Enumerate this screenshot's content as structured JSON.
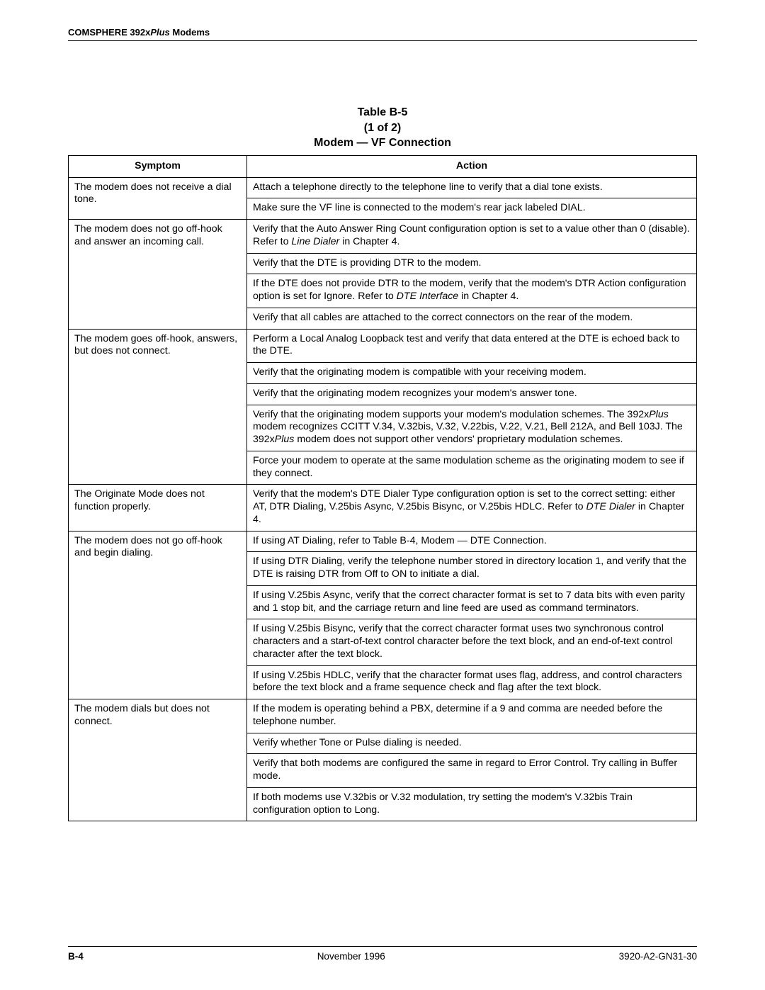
{
  "header": {
    "prefix": "COMSPHERE 392x",
    "italic": "Plus",
    "suffix": " Modems"
  },
  "caption": {
    "line1": "Table B-5",
    "line2": "(1 of 2)",
    "line3": "Modem — VF Connection"
  },
  "columns": {
    "symptom": "Symptom",
    "action": "Action"
  },
  "rows": [
    {
      "symptom": "The modem does not receive a dial tone.",
      "actions": [
        [
          {
            "t": "Attach a telephone directly to the telephone line to verify that a dial tone exists."
          }
        ],
        [
          {
            "t": "Make sure the VF line is connected to the modem's rear jack labeled DIAL."
          }
        ]
      ]
    },
    {
      "symptom": "The modem does not go off-hook and answer an incoming call.",
      "actions": [
        [
          {
            "t": "Verify that the Auto Answer Ring Count configuration option is set to a value other than 0 (disable). Refer to "
          },
          {
            "t": "Line Dialer",
            "i": true
          },
          {
            "t": " in Chapter 4."
          }
        ],
        [
          {
            "t": "Verify that the DTE is providing DTR to the modem."
          }
        ],
        [
          {
            "t": "If the DTE does not provide DTR to the modem, verify that the modem's DTR Action configuration option is set for Ignore. Refer to "
          },
          {
            "t": "DTE Interface",
            "i": true
          },
          {
            "t": " in Chapter 4."
          }
        ],
        [
          {
            "t": "Verify that all cables are attached to the correct connectors on the rear of the modem."
          }
        ]
      ]
    },
    {
      "symptom": "The modem goes off-hook, answers, but does not connect.",
      "actions": [
        [
          {
            "t": "Perform a Local Analog Loopback test and verify that data entered at the DTE is echoed back to the DTE."
          }
        ],
        [
          {
            "t": "Verify that the originating modem is compatible with your receiving modem."
          }
        ],
        [
          {
            "t": "Verify that the originating modem recognizes your modem's answer tone."
          }
        ],
        [
          {
            "t": "Verify that the originating modem supports your modem's modulation schemes. The 392x"
          },
          {
            "t": "Plus",
            "i": true
          },
          {
            "t": " modem recognizes CCITT V.34, V.32bis, V.32, V.22bis, V.22, V.21, Bell 212A, and Bell 103J. The 392x"
          },
          {
            "t": "Plus",
            "i": true
          },
          {
            "t": " modem does not support other vendors' proprietary modulation schemes."
          }
        ],
        [
          {
            "t": "Force your modem to operate at the same modulation scheme as the originating modem to see if they connect."
          }
        ]
      ]
    },
    {
      "symptom": "The Originate Mode does not function properly.",
      "actions": [
        [
          {
            "t": "Verify that the modem's DTE Dialer Type configuration option is set to the correct setting: either AT, DTR Dialing, V.25bis Async, V.25bis Bisync, or V.25bis HDLC. Refer to "
          },
          {
            "t": "DTE Dialer",
            "i": true
          },
          {
            "t": " in Chapter 4."
          }
        ]
      ]
    },
    {
      "symptom": "The modem does not go off-hook and begin dialing.",
      "actions": [
        [
          {
            "t": "If using AT Dialing, refer to Table B-4, Modem — DTE Connection."
          }
        ],
        [
          {
            "t": "If using DTR Dialing, verify the telephone number stored in directory location 1, and verify that the DTE is raising DTR from Off to ON to initiate a dial."
          }
        ],
        [
          {
            "t": "If using V.25bis Async, verify that the correct character format is set to 7 data bits with even parity and 1 stop bit, and the carriage return and line feed are used as command terminators."
          }
        ],
        [
          {
            "t": "If using V.25bis Bisync, verify that the correct character format uses two synchronous control characters and a start-of-text control character before the text block, and an end-of-text control character after the text block."
          }
        ],
        [
          {
            "t": "If using V.25bis HDLC, verify that the character format uses flag, address, and control characters before the text block and a frame sequence check and flag after the text block."
          }
        ]
      ]
    },
    {
      "symptom": "The modem dials but does not connect.",
      "actions": [
        [
          {
            "t": "If the modem is operating behind a PBX, determine if a 9 and comma are needed before the telephone number."
          }
        ],
        [
          {
            "t": "Verify whether Tone or Pulse dialing is needed."
          }
        ],
        [
          {
            "t": "Verify that both modems are configured the same in regard to Error Control. Try calling in Buffer mode."
          }
        ],
        [
          {
            "t": "If both modems use V.32bis or V.32 modulation, try setting the modem's V.32bis Train configuration option to Long."
          }
        ]
      ]
    }
  ],
  "footer": {
    "page": "B-4",
    "center": "November 1996",
    "right": "3920-A2-GN31-30"
  }
}
